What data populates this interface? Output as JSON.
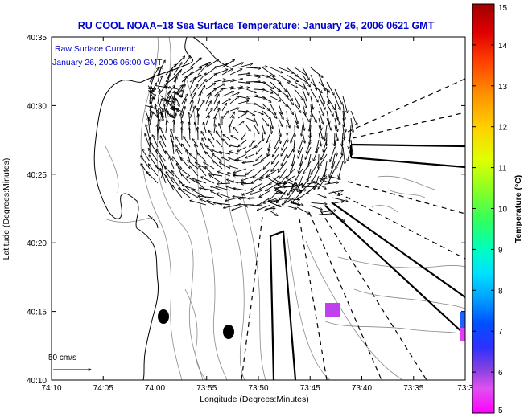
{
  "title": "RU COOL  NOAA−18  Sea Surface Temperature:  January 26, 2006 0621 GMT",
  "annotation": {
    "line1": "Raw Surface Current:",
    "line2": "January 26, 2006 06:00 GMT"
  },
  "scale_label": "50 cm/s",
  "axes": {
    "xlabel": "Longitude (Degrees:Minutes)",
    "ylabel": "Latitude (Degrees:Minutes)",
    "xticks": [
      "74:10",
      "74:05",
      "74:00",
      "73:55",
      "73:50",
      "73:45",
      "73:40",
      "73:35",
      "73:3"
    ],
    "yticks": [
      "40:35",
      "40:30",
      "40:25",
      "40:20",
      "40:15",
      "40:10"
    ]
  },
  "colorbar": {
    "label": "Temperature (°C)",
    "ticks": [
      "15",
      "14",
      "13",
      "12",
      "11",
      "10",
      "9",
      "8",
      "7",
      "6",
      "5"
    ],
    "min": 5,
    "max": 15
  },
  "colors": {
    "title": "#0000cc",
    "annotation": "#0000cc",
    "land": "#ffffff",
    "coastline": "#000000",
    "bathymetry": "#909090"
  }
}
